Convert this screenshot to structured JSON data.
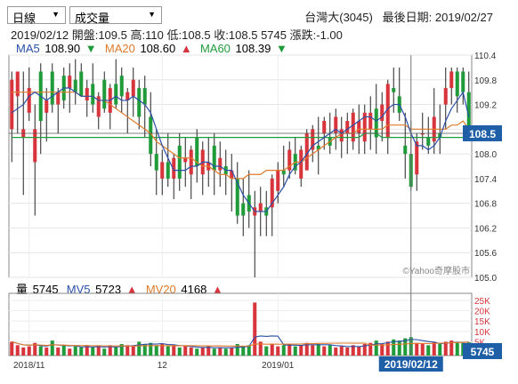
{
  "header": {
    "period_select": "日線",
    "indicator_select": "成交量",
    "title": "台灣大(3045)",
    "last_date_label": "最後日期:",
    "last_date": "2019/02/27"
  },
  "quote_line": {
    "date": "2019/02/12",
    "open_label": "開盤:",
    "open": "109.5",
    "high_label": "高:",
    "high": "110",
    "low_label": "低:",
    "low": "108.5",
    "close_label": "收:",
    "close": "108.5",
    "volume": "5745",
    "change_label": "漲跌:",
    "change": "-1.00"
  },
  "price_legend": {
    "ma5_label": "MA5",
    "ma5_value": "108.90",
    "ma5_arrow": "▼",
    "ma20_label": "MA20",
    "ma20_value": "108.60",
    "ma20_arrow": "▲",
    "ma60_label": "MA60",
    "ma60_value": "108.39",
    "ma60_arrow": "▼"
  },
  "volume_legend": {
    "vol_label": "量",
    "vol_value": "5745",
    "mv5_label": "MV5",
    "mv5_value": "5723",
    "mv5_arrow": "▲",
    "mv20_label": "MV20",
    "mv20_value": "4168",
    "mv20_arrow": "▲"
  },
  "watermark": "©Yahoo奇摩股市",
  "current_price_tag": "108.5",
  "current_volume_tag": "5745",
  "cursor_date_tag": "2019/02/12",
  "colors": {
    "up": "#d8343c",
    "down": "#1f9b3a",
    "ma5": "#2a4fa8",
    "ma20": "#e07a2a",
    "ma60": "#1f9b3a",
    "tag": "#1f5fa8"
  },
  "chart_data": {
    "type": "candlestick",
    "y_ticks": [
      "110.4",
      "109.8",
      "109.2",
      "108.6",
      "108.0",
      "107.4",
      "106.8",
      "106.2",
      "105.6",
      "105.0"
    ],
    "ylim": [
      105.0,
      110.4
    ],
    "volume_ticks": [
      "25K",
      "20K",
      "15K",
      "10K",
      "5K"
    ],
    "volume_ylim": [
      0,
      27000
    ],
    "x_ticks": [
      "2018/11",
      "12",
      "2019/01"
    ],
    "candles": [
      {
        "o": 108.6,
        "h": 110.0,
        "l": 107.8,
        "c": 109.8,
        "v": 6000
      },
      {
        "o": 109.4,
        "h": 110.0,
        "l": 108.5,
        "c": 110.0,
        "v": 4500
      },
      {
        "o": 108.4,
        "h": 110.0,
        "l": 107.0,
        "c": 108.6,
        "v": 3500
      },
      {
        "o": 109.0,
        "h": 110.1,
        "l": 108.8,
        "c": 109.6,
        "v": 4000
      },
      {
        "o": 107.8,
        "h": 109.2,
        "l": 106.5,
        "c": 108.6,
        "v": 5500
      },
      {
        "o": 110.0,
        "h": 110.2,
        "l": 108.0,
        "c": 108.8,
        "v": 4000
      },
      {
        "o": 109.0,
        "h": 109.6,
        "l": 108.3,
        "c": 109.3,
        "v": 3500
      },
      {
        "o": 110.0,
        "h": 110.2,
        "l": 109.0,
        "c": 109.2,
        "v": 6500
      },
      {
        "o": 109.2,
        "h": 109.6,
        "l": 108.5,
        "c": 109.5,
        "v": 3500
      },
      {
        "o": 109.9,
        "h": 110.1,
        "l": 109.1,
        "c": 109.3,
        "v": 4500
      },
      {
        "o": 109.6,
        "h": 110.2,
        "l": 109.0,
        "c": 109.9,
        "v": 3000
      },
      {
        "o": 109.8,
        "h": 110.3,
        "l": 109.2,
        "c": 109.5,
        "v": 4000
      },
      {
        "o": 110.0,
        "h": 110.2,
        "l": 109.4,
        "c": 109.4,
        "v": 3500
      },
      {
        "o": 109.3,
        "h": 109.8,
        "l": 108.9,
        "c": 109.6,
        "v": 4500
      },
      {
        "o": 109.7,
        "h": 110.2,
        "l": 109.0,
        "c": 109.2,
        "v": 3500
      },
      {
        "o": 108.9,
        "h": 109.5,
        "l": 108.6,
        "c": 109.4,
        "v": 4000
      },
      {
        "o": 109.8,
        "h": 110.0,
        "l": 109.0,
        "c": 109.1,
        "v": 3000
      },
      {
        "o": 109.0,
        "h": 109.7,
        "l": 108.6,
        "c": 109.6,
        "v": 4500
      },
      {
        "o": 109.7,
        "h": 110.3,
        "l": 109.1,
        "c": 109.2,
        "v": 3500
      },
      {
        "o": 109.9,
        "h": 110.1,
        "l": 109.0,
        "c": 109.4,
        "v": 5000
      },
      {
        "o": 109.3,
        "h": 109.6,
        "l": 108.5,
        "c": 109.5,
        "v": 4500
      },
      {
        "o": 109.4,
        "h": 110.1,
        "l": 108.9,
        "c": 109.8,
        "v": 4000
      },
      {
        "o": 109.6,
        "h": 109.8,
        "l": 108.6,
        "c": 108.9,
        "v": 6000
      },
      {
        "o": 109.6,
        "h": 109.9,
        "l": 108.4,
        "c": 109.2,
        "v": 5000
      },
      {
        "o": 108.9,
        "h": 109.5,
        "l": 107.7,
        "c": 108.0,
        "v": 5500
      },
      {
        "o": 108.0,
        "h": 108.6,
        "l": 107.0,
        "c": 107.6,
        "v": 4500
      },
      {
        "o": 107.4,
        "h": 108.1,
        "l": 107.0,
        "c": 107.8,
        "v": 5000
      },
      {
        "o": 107.8,
        "h": 108.5,
        "l": 107.2,
        "c": 107.4,
        "v": 4000
      },
      {
        "o": 107.4,
        "h": 108.0,
        "l": 106.9,
        "c": 107.9,
        "v": 4500
      },
      {
        "o": 108.2,
        "h": 108.5,
        "l": 107.1,
        "c": 107.4,
        "v": 3500
      },
      {
        "o": 107.8,
        "h": 108.4,
        "l": 107.2,
        "c": 107.9,
        "v": 4000
      },
      {
        "o": 107.5,
        "h": 108.2,
        "l": 106.9,
        "c": 108.1,
        "v": 3500
      },
      {
        "o": 108.4,
        "h": 108.6,
        "l": 107.3,
        "c": 107.7,
        "v": 3000
      },
      {
        "o": 107.5,
        "h": 108.3,
        "l": 107.0,
        "c": 108.1,
        "v": 3500
      },
      {
        "o": 107.6,
        "h": 108.4,
        "l": 107.2,
        "c": 107.8,
        "v": 4000
      },
      {
        "o": 108.2,
        "h": 108.5,
        "l": 107.0,
        "c": 107.6,
        "v": 3000
      },
      {
        "o": 107.6,
        "h": 108.3,
        "l": 107.2,
        "c": 107.9,
        "v": 3500
      },
      {
        "o": 107.7,
        "h": 108.1,
        "l": 107.0,
        "c": 107.5,
        "v": 3000
      },
      {
        "o": 107.4,
        "h": 108.0,
        "l": 106.6,
        "c": 107.6,
        "v": 3500
      },
      {
        "o": 107.4,
        "h": 107.8,
        "l": 106.3,
        "c": 106.5,
        "v": 5000
      },
      {
        "o": 106.8,
        "h": 107.4,
        "l": 106.0,
        "c": 106.5,
        "v": 4000
      },
      {
        "o": 107.0,
        "h": 107.6,
        "l": 106.2,
        "c": 106.6,
        "v": 4500
      },
      {
        "o": 106.5,
        "h": 107.1,
        "l": 105.0,
        "c": 106.7,
        "v": 23000
      },
      {
        "o": 106.6,
        "h": 107.2,
        "l": 106.0,
        "c": 106.8,
        "v": 6000
      },
      {
        "o": 106.7,
        "h": 107.1,
        "l": 106.0,
        "c": 106.5,
        "v": 4000
      },
      {
        "o": 106.7,
        "h": 107.5,
        "l": 106.0,
        "c": 107.4,
        "v": 5000
      },
      {
        "o": 107.1,
        "h": 107.8,
        "l": 106.8,
        "c": 107.6,
        "v": 4000
      },
      {
        "o": 107.6,
        "h": 108.2,
        "l": 107.2,
        "c": 107.5,
        "v": 4500
      },
      {
        "o": 107.6,
        "h": 108.3,
        "l": 107.4,
        "c": 108.1,
        "v": 5000
      },
      {
        "o": 108.0,
        "h": 108.4,
        "l": 107.5,
        "c": 107.6,
        "v": 4000
      },
      {
        "o": 107.4,
        "h": 108.2,
        "l": 107.2,
        "c": 108.1,
        "v": 4500
      },
      {
        "o": 107.6,
        "h": 108.6,
        "l": 107.6,
        "c": 108.5,
        "v": 5500
      },
      {
        "o": 108.1,
        "h": 108.7,
        "l": 107.8,
        "c": 108.6,
        "v": 4500
      },
      {
        "o": 108.2,
        "h": 108.9,
        "l": 107.5,
        "c": 108.1,
        "v": 5000
      },
      {
        "o": 108.5,
        "h": 108.9,
        "l": 108.1,
        "c": 108.8,
        "v": 4000
      },
      {
        "o": 108.4,
        "h": 109.0,
        "l": 108.0,
        "c": 108.2,
        "v": 4500
      },
      {
        "o": 108.5,
        "h": 109.1,
        "l": 108.1,
        "c": 108.9,
        "v": 3500
      },
      {
        "o": 108.3,
        "h": 108.9,
        "l": 107.9,
        "c": 108.6,
        "v": 4000
      },
      {
        "o": 108.5,
        "h": 109.0,
        "l": 108.0,
        "c": 108.8,
        "v": 3500
      },
      {
        "o": 108.3,
        "h": 109.1,
        "l": 108.1,
        "c": 109.0,
        "v": 4500
      },
      {
        "o": 108.5,
        "h": 109.2,
        "l": 108.0,
        "c": 108.8,
        "v": 4000
      },
      {
        "o": 108.3,
        "h": 109.2,
        "l": 108.0,
        "c": 109.0,
        "v": 5000
      },
      {
        "o": 108.6,
        "h": 109.4,
        "l": 108.1,
        "c": 109.0,
        "v": 5500
      },
      {
        "o": 109.1,
        "h": 109.7,
        "l": 108.0,
        "c": 108.4,
        "v": 6500
      },
      {
        "o": 108.8,
        "h": 109.5,
        "l": 108.3,
        "c": 109.2,
        "v": 5000
      },
      {
        "o": 108.4,
        "h": 109.8,
        "l": 108.0,
        "c": 109.7,
        "v": 6000
      },
      {
        "o": 109.6,
        "h": 110.1,
        "l": 109.0,
        "c": 109.5,
        "v": 7000
      },
      {
        "o": 109.4,
        "h": 110.1,
        "l": 108.8,
        "c": 109.0,
        "v": 6500
      },
      {
        "o": 108.2,
        "h": 109.0,
        "l": 107.4,
        "c": 108.0,
        "v": 7500
      },
      {
        "o": 108.0,
        "h": 108.8,
        "l": 107.1,
        "c": 107.2,
        "v": 8000
      },
      {
        "o": 107.5,
        "h": 108.5,
        "l": 107.1,
        "c": 108.3,
        "v": 5500
      },
      {
        "o": 108.5,
        "h": 109.0,
        "l": 108.1,
        "c": 108.5,
        "v": 5000
      },
      {
        "o": 108.4,
        "h": 108.9,
        "l": 108.0,
        "c": 108.2,
        "v": 4500
      },
      {
        "o": 108.3,
        "h": 109.6,
        "l": 108.0,
        "c": 108.9,
        "v": 6000
      },
      {
        "o": 108.5,
        "h": 109.2,
        "l": 108.0,
        "c": 108.4,
        "v": 5000
      },
      {
        "o": 109.2,
        "h": 110.1,
        "l": 108.6,
        "c": 109.6,
        "v": 6000
      },
      {
        "o": 109.6,
        "h": 110.1,
        "l": 109.2,
        "c": 110.0,
        "v": 6500
      },
      {
        "o": 110.0,
        "h": 110.1,
        "l": 109.0,
        "c": 109.4,
        "v": 5500
      },
      {
        "o": 110.0,
        "h": 110.1,
        "l": 109.2,
        "c": 109.5,
        "v": 5500
      },
      {
        "o": 109.5,
        "h": 110.0,
        "l": 108.5,
        "c": 108.5,
        "v": 5745
      }
    ],
    "ma5": [
      109.0,
      109.1,
      109.2,
      109.4,
      109.5,
      109.4,
      109.3,
      109.4,
      109.5,
      109.6,
      109.6,
      109.5,
      109.4,
      109.4,
      109.4,
      109.3,
      109.3,
      109.3,
      109.4,
      109.3,
      109.3,
      109.4,
      109.3,
      109.2,
      109.0,
      108.6,
      108.2,
      107.9,
      107.6,
      107.6,
      107.6,
      107.7,
      107.7,
      107.8,
      107.8,
      107.7,
      107.7,
      107.6,
      107.6,
      107.3,
      107.0,
      106.8,
      106.6,
      106.6,
      106.6,
      106.8,
      107.0,
      107.2,
      107.5,
      107.7,
      107.8,
      108.0,
      108.2,
      108.3,
      108.4,
      108.5,
      108.6,
      108.5,
      108.6,
      108.7,
      108.8,
      108.9,
      108.9,
      108.8,
      108.9,
      109.1,
      109.2,
      109.2,
      108.9,
      108.5,
      108.2,
      108.2,
      108.1,
      108.2,
      108.4,
      108.8,
      109.1,
      109.3,
      109.5,
      108.9
    ],
    "ma20": [
      109.5,
      109.5,
      109.5,
      109.5,
      109.5,
      109.5,
      109.5,
      109.5,
      109.5,
      109.5,
      109.5,
      109.5,
      109.4,
      109.4,
      109.4,
      109.3,
      109.3,
      109.2,
      109.1,
      109.0,
      108.9,
      108.8,
      108.7,
      108.6,
      108.5,
      108.3,
      108.2,
      108.1,
      108.0,
      107.9,
      107.9,
      107.9,
      107.8,
      107.7,
      107.7,
      107.6,
      107.5,
      107.5,
      107.4,
      107.4,
      107.4,
      107.5,
      107.5,
      107.5,
      107.6,
      107.6,
      107.6,
      107.6,
      107.7,
      107.8,
      107.8,
      107.9,
      108.0,
      108.1,
      108.2,
      108.3,
      108.4,
      108.5,
      108.5,
      108.5,
      108.6,
      108.6,
      108.6,
      108.6,
      108.6,
      108.7,
      108.7,
      108.7,
      108.7,
      108.6,
      108.6,
      108.6,
      108.6,
      108.6,
      108.6,
      108.6,
      108.7,
      108.7,
      108.8,
      108.6
    ],
    "ma60": [
      108.4,
      108.4,
      108.4,
      108.4,
      108.4,
      108.4,
      108.4,
      108.4,
      108.4,
      108.4,
      108.4,
      108.4,
      108.4,
      108.4,
      108.4,
      108.4,
      108.4,
      108.4,
      108.4,
      108.4,
      108.4,
      108.4,
      108.4,
      108.4,
      108.4,
      108.4,
      108.4,
      108.4,
      108.4,
      108.4,
      108.4,
      108.4,
      108.4,
      108.4,
      108.4,
      108.4,
      108.4,
      108.4,
      108.4,
      108.4,
      108.4,
      108.4,
      108.4,
      108.4,
      108.4,
      108.4,
      108.4,
      108.4,
      108.4,
      108.4,
      108.4,
      108.4,
      108.4,
      108.4,
      108.4,
      108.4,
      108.4,
      108.4,
      108.4,
      108.4,
      108.4,
      108.5,
      108.5,
      108.5,
      108.4,
      108.4,
      108.4,
      108.4,
      108.4,
      108.4,
      108.4,
      108.4,
      108.4,
      108.4,
      108.4,
      108.4,
      108.4,
      108.4,
      108.4,
      108.39
    ]
  }
}
